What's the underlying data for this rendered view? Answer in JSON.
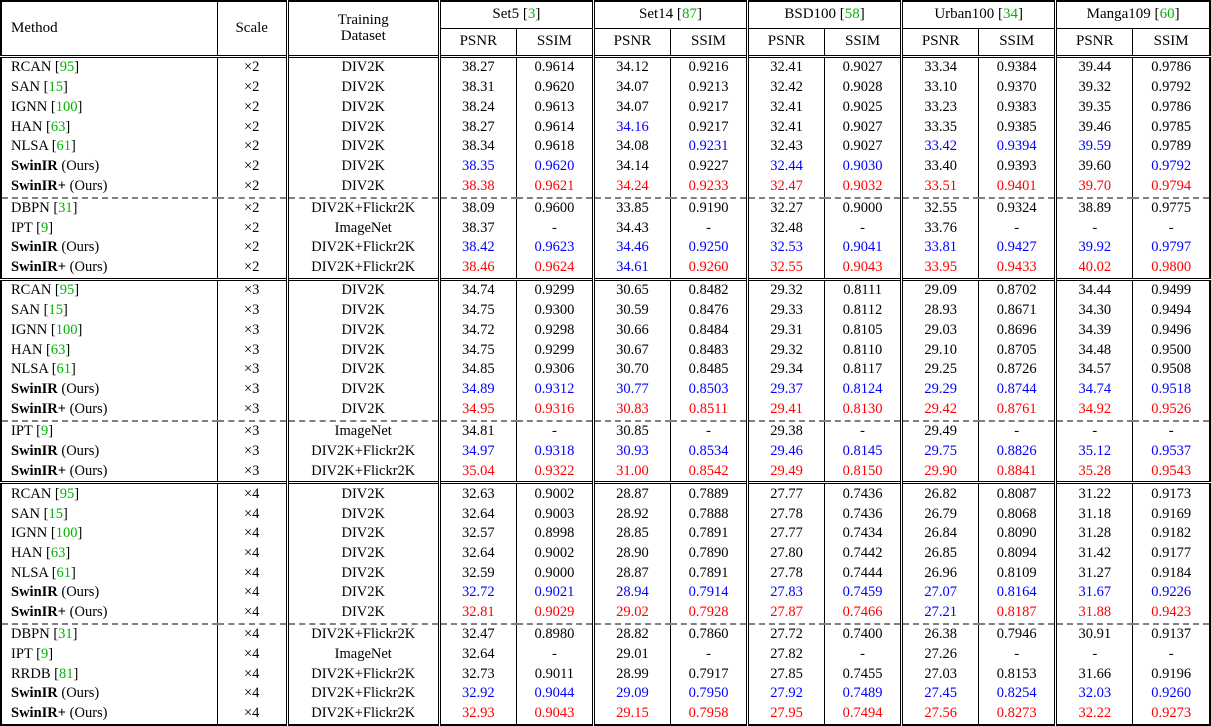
{
  "colors": {
    "reference_green": "#00b400",
    "best_red": "#ff0000",
    "second_best_blue": "#0000ff",
    "text_black": "#000000"
  },
  "table": {
    "header": {
      "method": "Method",
      "scale": "Scale",
      "training_line1": "Training",
      "training_line2": "Dataset",
      "psnr": "PSNR",
      "ssim": "SSIM",
      "benchmarks": [
        {
          "name": "Set5",
          "ref": "3"
        },
        {
          "name": "Set14",
          "ref": "87"
        },
        {
          "name": "BSD100",
          "ref": "58"
        },
        {
          "name": "Urban100",
          "ref": "34"
        },
        {
          "name": "Manga109",
          "ref": "60"
        }
      ]
    },
    "groups": [
      {
        "sep": "none",
        "rows": [
          {
            "m": "RCAN",
            "ref": "95",
            "b": 0,
            "sc": "×2",
            "ds": "DIV2K",
            "v": [
              "38.27",
              "0.9614",
              "34.12",
              "0.9216",
              "32.41",
              "0.9027",
              "33.34",
              "0.9384",
              "39.44",
              "0.9786"
            ],
            "c": "kkkkkkkkkk"
          },
          {
            "m": "SAN",
            "ref": "15",
            "b": 0,
            "sc": "×2",
            "ds": "DIV2K",
            "v": [
              "38.31",
              "0.9620",
              "34.07",
              "0.9213",
              "32.42",
              "0.9028",
              "33.10",
              "0.9370",
              "39.32",
              "0.9792"
            ],
            "c": "kkkkkkkkkk"
          },
          {
            "m": "IGNN",
            "ref": "100",
            "b": 0,
            "sc": "×2",
            "ds": "DIV2K",
            "v": [
              "38.24",
              "0.9613",
              "34.07",
              "0.9217",
              "32.41",
              "0.9025",
              "33.23",
              "0.9383",
              "39.35",
              "0.9786"
            ],
            "c": "kkkkkkkkkk"
          },
          {
            "m": "HAN",
            "ref": "63",
            "b": 0,
            "sc": "×2",
            "ds": "DIV2K",
            "v": [
              "38.27",
              "0.9614",
              "34.16",
              "0.9217",
              "32.41",
              "0.9027",
              "33.35",
              "0.9385",
              "39.46",
              "0.9785"
            ],
            "c": "kkbkkkkkkk"
          },
          {
            "m": "NLSA",
            "ref": "61",
            "b": 0,
            "sc": "×2",
            "ds": "DIV2K",
            "v": [
              "38.34",
              "0.9618",
              "34.08",
              "0.9231",
              "32.43",
              "0.9027",
              "33.42",
              "0.9394",
              "39.59",
              "0.9789"
            ],
            "c": "kkkbkkbbbk"
          },
          {
            "m": "SwinIR",
            "sfx": " (Ours)",
            "b": 1,
            "sc": "×2",
            "ds": "DIV2K",
            "v": [
              "38.35",
              "0.9620",
              "34.14",
              "0.9227",
              "32.44",
              "0.9030",
              "33.40",
              "0.9393",
              "39.60",
              "0.9792"
            ],
            "c": "bbkkbbkkkb"
          },
          {
            "m": "SwinIR+",
            "sfx": " (Ours)",
            "b": 1,
            "sc": "×2",
            "ds": "DIV2K",
            "v": [
              "38.38",
              "0.9621",
              "34.24",
              "0.9233",
              "32.47",
              "0.9032",
              "33.51",
              "0.9401",
              "39.70",
              "0.9794"
            ],
            "c": "rrrrrrrrrr"
          }
        ]
      },
      {
        "sep": "dashed",
        "rows": [
          {
            "m": "DBPN",
            "ref": "31",
            "b": 0,
            "sc": "×2",
            "ds": "DIV2K+Flickr2K",
            "v": [
              "38.09",
              "0.9600",
              "33.85",
              "0.9190",
              "32.27",
              "0.9000",
              "32.55",
              "0.9324",
              "38.89",
              "0.9775"
            ],
            "c": "kkkkkkkkkk"
          },
          {
            "m": "IPT",
            "ref": "9",
            "b": 0,
            "sc": "×2",
            "ds": "ImageNet",
            "v": [
              "38.37",
              "-",
              "34.43",
              "-",
              "32.48",
              "-",
              "33.76",
              "-",
              "-",
              "-"
            ],
            "c": "kkkkkkkkkk"
          },
          {
            "m": "SwinIR",
            "sfx": " (Ours)",
            "b": 1,
            "sc": "×2",
            "ds": "DIV2K+Flickr2K",
            "v": [
              "38.42",
              "0.9623",
              "34.46",
              "0.9250",
              "32.53",
              "0.9041",
              "33.81",
              "0.9427",
              "39.92",
              "0.9797"
            ],
            "c": "bbbbbbbbbb"
          },
          {
            "m": "SwinIR+",
            "sfx": " (Ours)",
            "b": 1,
            "sc": "×2",
            "ds": "DIV2K+Flickr2K",
            "v": [
              "38.46",
              "0.9624",
              "34.61",
              "0.9260",
              "32.55",
              "0.9043",
              "33.95",
              "0.9433",
              "40.02",
              "0.9800"
            ],
            "c": "rrbrrrrrrr"
          }
        ]
      },
      {
        "sep": "double",
        "rows": [
          {
            "m": "RCAN",
            "ref": "95",
            "b": 0,
            "sc": "×3",
            "ds": "DIV2K",
            "v": [
              "34.74",
              "0.9299",
              "30.65",
              "0.8482",
              "29.32",
              "0.8111",
              "29.09",
              "0.8702",
              "34.44",
              "0.9499"
            ],
            "c": "kkkkkkkkkk"
          },
          {
            "m": "SAN",
            "ref": "15",
            "b": 0,
            "sc": "×3",
            "ds": "DIV2K",
            "v": [
              "34.75",
              "0.9300",
              "30.59",
              "0.8476",
              "29.33",
              "0.8112",
              "28.93",
              "0.8671",
              "34.30",
              "0.9494"
            ],
            "c": "kkkkkkkkkk"
          },
          {
            "m": "IGNN",
            "ref": "100",
            "b": 0,
            "sc": "×3",
            "ds": "DIV2K",
            "v": [
              "34.72",
              "0.9298",
              "30.66",
              "0.8484",
              "29.31",
              "0.8105",
              "29.03",
              "0.8696",
              "34.39",
              "0.9496"
            ],
            "c": "kkkkkkkkkk"
          },
          {
            "m": "HAN",
            "ref": "63",
            "b": 0,
            "sc": "×3",
            "ds": "DIV2K",
            "v": [
              "34.75",
              "0.9299",
              "30.67",
              "0.8483",
              "29.32",
              "0.8110",
              "29.10",
              "0.8705",
              "34.48",
              "0.9500"
            ],
            "c": "kkkkkkkkkk"
          },
          {
            "m": "NLSA",
            "ref": "61",
            "b": 0,
            "sc": "×3",
            "ds": "DIV2K",
            "v": [
              "34.85",
              "0.9306",
              "30.70",
              "0.8485",
              "29.34",
              "0.8117",
              "29.25",
              "0.8726",
              "34.57",
              "0.9508"
            ],
            "c": "kkkkkkkkkk"
          },
          {
            "m": "SwinIR",
            "sfx": " (Ours)",
            "b": 1,
            "sc": "×3",
            "ds": "DIV2K",
            "v": [
              "34.89",
              "0.9312",
              "30.77",
              "0.8503",
              "29.37",
              "0.8124",
              "29.29",
              "0.8744",
              "34.74",
              "0.9518"
            ],
            "c": "bbbbbbbbbb"
          },
          {
            "m": "SwinIR+",
            "sfx": " (Ours)",
            "b": 1,
            "sc": "×3",
            "ds": "DIV2K",
            "v": [
              "34.95",
              "0.9316",
              "30.83",
              "0.8511",
              "29.41",
              "0.8130",
              "29.42",
              "0.8761",
              "34.92",
              "0.9526"
            ],
            "c": "rrrrrrrrrr"
          }
        ]
      },
      {
        "sep": "dashed",
        "rows": [
          {
            "m": "IPT",
            "ref": "9",
            "b": 0,
            "sc": "×3",
            "ds": "ImageNet",
            "v": [
              "34.81",
              "-",
              "30.85",
              "-",
              "29.38",
              "-",
              "29.49",
              "-",
              "-",
              "-"
            ],
            "c": "kkkkkkkkkk"
          },
          {
            "m": "SwinIR",
            "sfx": " (Ours)",
            "b": 1,
            "sc": "×3",
            "ds": "DIV2K+Flickr2K",
            "v": [
              "34.97",
              "0.9318",
              "30.93",
              "0.8534",
              "29.46",
              "0.8145",
              "29.75",
              "0.8826",
              "35.12",
              "0.9537"
            ],
            "c": "bbbbbbbbbb"
          },
          {
            "m": "SwinIR+",
            "sfx": " (Ours)",
            "b": 1,
            "sc": "×3",
            "ds": "DIV2K+Flickr2K",
            "v": [
              "35.04",
              "0.9322",
              "31.00",
              "0.8542",
              "29.49",
              "0.8150",
              "29.90",
              "0.8841",
              "35.28",
              "0.9543"
            ],
            "c": "rrrrrrrrrr"
          }
        ]
      },
      {
        "sep": "double",
        "rows": [
          {
            "m": "RCAN",
            "ref": "95",
            "b": 0,
            "sc": "×4",
            "ds": "DIV2K",
            "v": [
              "32.63",
              "0.9002",
              "28.87",
              "0.7889",
              "27.77",
              "0.7436",
              "26.82",
              "0.8087",
              "31.22",
              "0.9173"
            ],
            "c": "kkkkkkkkkk"
          },
          {
            "m": "SAN",
            "ref": "15",
            "b": 0,
            "sc": "×4",
            "ds": "DIV2K",
            "v": [
              "32.64",
              "0.9003",
              "28.92",
              "0.7888",
              "27.78",
              "0.7436",
              "26.79",
              "0.8068",
              "31.18",
              "0.9169"
            ],
            "c": "kkkkkkkkkk"
          },
          {
            "m": "IGNN",
            "ref": "100",
            "b": 0,
            "sc": "×4",
            "ds": "DIV2K",
            "v": [
              "32.57",
              "0.8998",
              "28.85",
              "0.7891",
              "27.77",
              "0.7434",
              "26.84",
              "0.8090",
              "31.28",
              "0.9182"
            ],
            "c": "kkkkkkkkkk"
          },
          {
            "m": "HAN",
            "ref": "63",
            "b": 0,
            "sc": "×4",
            "ds": "DIV2K",
            "v": [
              "32.64",
              "0.9002",
              "28.90",
              "0.7890",
              "27.80",
              "0.7442",
              "26.85",
              "0.8094",
              "31.42",
              "0.9177"
            ],
            "c": "kkkkkkkkkk"
          },
          {
            "m": "NLSA",
            "ref": "61",
            "b": 0,
            "sc": "×4",
            "ds": "DIV2K",
            "v": [
              "32.59",
              "0.9000",
              "28.87",
              "0.7891",
              "27.78",
              "0.7444",
              "26.96",
              "0.8109",
              "31.27",
              "0.9184"
            ],
            "c": "kkkkkkkkkk"
          },
          {
            "m": "SwinIR",
            "sfx": " (Ours)",
            "b": 1,
            "sc": "×4",
            "ds": "DIV2K",
            "v": [
              "32.72",
              "0.9021",
              "28.94",
              "0.7914",
              "27.83",
              "0.7459",
              "27.07",
              "0.8164",
              "31.67",
              "0.9226"
            ],
            "c": "bbbbbbbbbb"
          },
          {
            "m": "SwinIR+",
            "sfx": " (Ours)",
            "b": 1,
            "sc": "×4",
            "ds": "DIV2K",
            "v": [
              "32.81",
              "0.9029",
              "29.02",
              "0.7928",
              "27.87",
              "0.7466",
              "27.21",
              "0.8187",
              "31.88",
              "0.9423"
            ],
            "c": "rrrrrrbrrr"
          }
        ]
      },
      {
        "sep": "dashed",
        "rows": [
          {
            "m": "DBPN",
            "ref": "31",
            "b": 0,
            "sc": "×4",
            "ds": "DIV2K+Flickr2K",
            "v": [
              "32.47",
              "0.8980",
              "28.82",
              "0.7860",
              "27.72",
              "0.7400",
              "26.38",
              "0.7946",
              "30.91",
              "0.9137"
            ],
            "c": "kkkkkkkkkk"
          },
          {
            "m": "IPT",
            "ref": "9",
            "b": 0,
            "sc": "×4",
            "ds": "ImageNet",
            "v": [
              "32.64",
              "-",
              "29.01",
              "-",
              "27.82",
              "-",
              "27.26",
              "-",
              "-",
              "-"
            ],
            "c": "kkkkkkkkkk"
          },
          {
            "m": "RRDB",
            "ref": "81",
            "b": 0,
            "sc": "×4",
            "ds": "DIV2K+Flickr2K",
            "v": [
              "32.73",
              "0.9011",
              "28.99",
              "0.7917",
              "27.85",
              "0.7455",
              "27.03",
              "0.8153",
              "31.66",
              "0.9196"
            ],
            "c": "kkkkkkkkkk"
          },
          {
            "m": "SwinIR",
            "sfx": " (Ours)",
            "b": 1,
            "sc": "×4",
            "ds": "DIV2K+Flickr2K",
            "v": [
              "32.92",
              "0.9044",
              "29.09",
              "0.7950",
              "27.92",
              "0.7489",
              "27.45",
              "0.8254",
              "32.03",
              "0.9260"
            ],
            "c": "bbbbbbbbbb"
          },
          {
            "m": "SwinIR+",
            "sfx": " (Ours)",
            "b": 1,
            "sc": "×4",
            "ds": "DIV2K+Flickr2K",
            "v": [
              "32.93",
              "0.9043",
              "29.15",
              "0.7958",
              "27.95",
              "0.7494",
              "27.56",
              "0.8273",
              "32.22",
              "0.9273"
            ],
            "c": "rrrrrrrrrr"
          }
        ]
      }
    ]
  }
}
